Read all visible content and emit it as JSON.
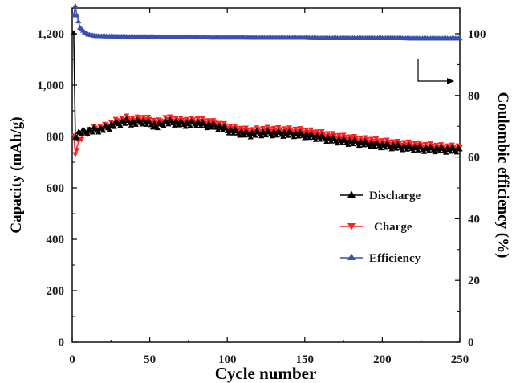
{
  "chart_data": {
    "type": "line",
    "title": "",
    "xlabel": "Cycle number",
    "ylabel": "Capacity (mAh/g)",
    "ylabel_right": "Coulombic efficiency (%)",
    "xlim": [
      0,
      250
    ],
    "ylim": [
      0,
      1300
    ],
    "ylim_right": [
      0,
      108.33
    ],
    "x_ticks": [
      0,
      50,
      100,
      150,
      200,
      250
    ],
    "x_tick_labels": [
      "0",
      "50",
      "100",
      "150",
      "200",
      "250"
    ],
    "y_ticks": [
      0,
      200,
      400,
      600,
      800,
      1000,
      1200
    ],
    "y_tick_labels": [
      "0",
      "200",
      "400",
      "600",
      "800",
      "1,000",
      "1,200"
    ],
    "y_right_ticks": [
      0,
      20,
      40,
      60,
      80,
      100
    ],
    "y_right_tick_labels": [
      "0",
      "20",
      "40",
      "60",
      "80",
      "100"
    ],
    "grid": false,
    "legend_position": "center-right",
    "annotation": "arrow pointing right indicating efficiency curve uses right axis",
    "series": [
      {
        "name": "Discharge",
        "axis": "left",
        "color": "#000000",
        "marker": "triangle-up",
        "points": [
          [
            1,
            1200
          ],
          [
            2,
            800
          ],
          [
            5,
            815
          ],
          [
            10,
            820
          ],
          [
            15,
            825
          ],
          [
            20,
            830
          ],
          [
            25,
            840
          ],
          [
            30,
            852
          ],
          [
            35,
            858
          ],
          [
            40,
            852
          ],
          [
            45,
            858
          ],
          [
            50,
            850
          ],
          [
            55,
            840
          ],
          [
            60,
            855
          ],
          [
            65,
            855
          ],
          [
            70,
            850
          ],
          [
            75,
            848
          ],
          [
            80,
            852
          ],
          [
            85,
            845
          ],
          [
            90,
            842
          ],
          [
            95,
            835
          ],
          [
            100,
            825
          ],
          [
            105,
            818
          ],
          [
            110,
            812
          ],
          [
            115,
            808
          ],
          [
            120,
            812
          ],
          [
            125,
            812
          ],
          [
            130,
            812
          ],
          [
            135,
            810
          ],
          [
            140,
            810
          ],
          [
            145,
            808
          ],
          [
            150,
            805
          ],
          [
            155,
            800
          ],
          [
            160,
            795
          ],
          [
            165,
            790
          ],
          [
            170,
            785
          ],
          [
            175,
            780
          ],
          [
            180,
            778
          ],
          [
            185,
            775
          ],
          [
            190,
            772
          ],
          [
            195,
            768
          ],
          [
            200,
            765
          ],
          [
            205,
            762
          ],
          [
            210,
            760
          ],
          [
            215,
            757
          ],
          [
            220,
            755
          ],
          [
            225,
            752
          ],
          [
            230,
            750
          ],
          [
            235,
            750
          ],
          [
            240,
            748
          ],
          [
            245,
            748
          ],
          [
            250,
            750
          ]
        ]
      },
      {
        "name": "Charge",
        "axis": "left",
        "color": "#ff2020",
        "marker": "triangle-down",
        "points": [
          [
            1,
            800
          ],
          [
            2,
            735
          ],
          [
            3,
            760
          ],
          [
            5,
            790
          ],
          [
            10,
            820
          ],
          [
            15,
            830
          ],
          [
            20,
            835
          ],
          [
            25,
            850
          ],
          [
            30,
            862
          ],
          [
            35,
            870
          ],
          [
            40,
            864
          ],
          [
            45,
            870
          ],
          [
            50,
            864
          ],
          [
            55,
            852
          ],
          [
            60,
            868
          ],
          [
            65,
            866
          ],
          [
            70,
            862
          ],
          [
            75,
            860
          ],
          [
            80,
            864
          ],
          [
            85,
            858
          ],
          [
            90,
            854
          ],
          [
            95,
            845
          ],
          [
            100,
            838
          ],
          [
            105,
            830
          ],
          [
            110,
            825
          ],
          [
            115,
            820
          ],
          [
            120,
            825
          ],
          [
            125,
            826
          ],
          [
            130,
            826
          ],
          [
            135,
            824
          ],
          [
            140,
            824
          ],
          [
            145,
            822
          ],
          [
            150,
            820
          ],
          [
            155,
            815
          ],
          [
            160,
            810
          ],
          [
            165,
            805
          ],
          [
            170,
            800
          ],
          [
            175,
            795
          ],
          [
            180,
            792
          ],
          [
            185,
            788
          ],
          [
            190,
            785
          ],
          [
            195,
            782
          ],
          [
            200,
            778
          ],
          [
            205,
            775
          ],
          [
            210,
            772
          ],
          [
            215,
            770
          ],
          [
            220,
            768
          ],
          [
            225,
            765
          ],
          [
            230,
            762
          ],
          [
            235,
            760
          ],
          [
            240,
            758
          ],
          [
            245,
            757
          ],
          [
            250,
            758
          ]
        ]
      },
      {
        "name": "Efficiency",
        "axis": "right",
        "color": "#3a4fb0",
        "marker": "triangle-up",
        "points": [
          [
            1,
            106
          ],
          [
            2,
            109
          ],
          [
            3,
            106
          ],
          [
            5,
            102
          ],
          [
            8,
            100.5
          ],
          [
            10,
            99.8
          ],
          [
            15,
            99.3
          ],
          [
            20,
            99.2
          ],
          [
            30,
            99.1
          ],
          [
            40,
            99.0
          ],
          [
            50,
            99.0
          ],
          [
            60,
            98.9
          ],
          [
            70,
            98.9
          ],
          [
            80,
            98.9
          ],
          [
            90,
            98.8
          ],
          [
            100,
            98.8
          ],
          [
            110,
            98.8
          ],
          [
            120,
            98.7
          ],
          [
            130,
            98.7
          ],
          [
            140,
            98.7
          ],
          [
            150,
            98.7
          ],
          [
            160,
            98.6
          ],
          [
            170,
            98.6
          ],
          [
            180,
            98.6
          ],
          [
            190,
            98.6
          ],
          [
            200,
            98.6
          ],
          [
            210,
            98.6
          ],
          [
            220,
            98.5
          ],
          [
            230,
            98.5
          ],
          [
            240,
            98.5
          ],
          [
            250,
            98.5
          ]
        ]
      }
    ]
  }
}
